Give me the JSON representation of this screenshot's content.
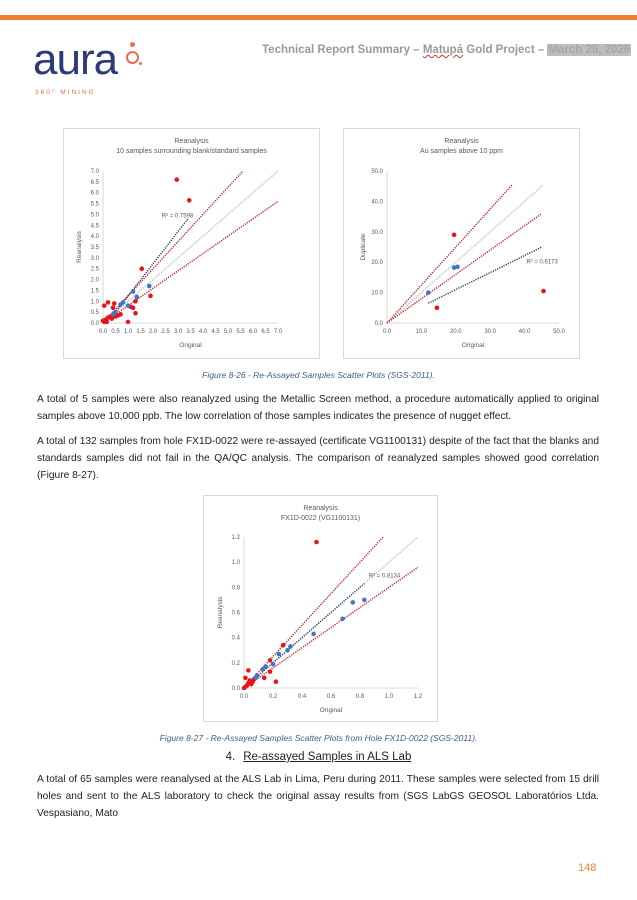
{
  "header": {
    "logo_word": "aura",
    "logo_tagline": "360° MINING",
    "title_prefix": "Technical Report Summary – ",
    "title_project": "Matupá",
    "title_middle": " Gold Project – ",
    "title_date": "March 25, 2026",
    "accent_color": "#ef7d32"
  },
  "captions": {
    "fig26": "Figure 8-26 - Re-Assayed Samples Scatter Plots (SGS-2011).",
    "fig27": "Figure 8-27 - Re-Assayed Samples Scatter Plots from Hole FX1D-0022 (SGS-2011)."
  },
  "paragraphs": {
    "p1": "A total of 5 samples were also reanalyzed using the Metallic Screen method, a procedure automatically applied to original samples above 10,000 ppb. The low correlation of those samples indicates the presence of nugget effect.",
    "p2": "A total of 132 samples from hole FX1D-0022 were re-assayed (certificate VG1100131) despite of the fact that the blanks and standards samples did not fail in the QA/QC analysis. The comparison of reanalyzed samples showed good correlation (Figure 8-27).",
    "p3": "A total of 65 samples were reanalysed at the ALS Lab in Lima, Peru during 2011. These samples were selected from 15 drill holes and sent to the ALS laboratory to check the original assay results from (SGS LabGS GEOSOL Laboratórios Ltda. Vespasiano, Mato"
  },
  "section": {
    "number": "4.",
    "title": "Re-assayed Samples in ALS Lab"
  },
  "page_number": "148",
  "chart_data": [
    {
      "type": "scatter",
      "title": "Reanalysis",
      "subtitle": "10 samples surrounding blank/standard samples",
      "xlabel": "Original",
      "ylabel": "Reanalysis",
      "xlim": [
        0,
        7
      ],
      "ylim": [
        0,
        7
      ],
      "xticks": [
        "0.0",
        "0.5",
        "1.0",
        "1.5",
        "2.0",
        "2.5",
        "3.0",
        "3.5",
        "4.0",
        "4.5",
        "5.0",
        "5.5",
        "6.0",
        "6.5",
        "7.0"
      ],
      "yticks": [
        "0.0",
        "0.5",
        "1.0",
        "1.5",
        "2.0",
        "2.5",
        "3.0",
        "3.5",
        "4.0",
        "4.5",
        "5.0",
        "5.5",
        "6.0",
        "6.5",
        "7.0"
      ],
      "r2_label": "R² = 0.7598",
      "r2_at": [
        2.35,
        4.85
      ],
      "series": [
        {
          "name": "red",
          "color": "#e8141b",
          "points": [
            [
              2.95,
              6.6
            ],
            [
              3.45,
              5.65
            ],
            [
              1.55,
              2.5
            ],
            [
              1.9,
              1.25
            ],
            [
              1.3,
              1.0
            ],
            [
              1.3,
              0.45
            ],
            [
              1.0,
              0.05
            ],
            [
              0.05,
              0.8
            ],
            [
              0.2,
              0.95
            ],
            [
              0.45,
              0.9
            ],
            [
              0.4,
              0.7
            ],
            [
              1.1,
              0.75
            ],
            [
              1.2,
              0.7
            ],
            [
              0.6,
              0.35
            ],
            [
              0.5,
              0.3
            ],
            [
              0.7,
              0.4
            ],
            [
              0.35,
              0.2
            ],
            [
              0.2,
              0.25
            ],
            [
              0.1,
              0.15
            ],
            [
              0.05,
              0.05
            ],
            [
              0.0,
              0.1
            ],
            [
              0.15,
              0.05
            ],
            [
              0.3,
              0.3
            ]
          ]
        },
        {
          "name": "blue",
          "color": "#4472c4",
          "points": [
            [
              1.85,
              1.7
            ],
            [
              1.2,
              1.45
            ],
            [
              1.35,
              1.2
            ],
            [
              0.8,
              0.95
            ],
            [
              0.7,
              0.85
            ],
            [
              1.0,
              0.8
            ],
            [
              0.5,
              0.5
            ],
            [
              0.4,
              0.4
            ]
          ]
        }
      ],
      "lines": [
        {
          "name": "trend",
          "color": "#2f3f6e",
          "from": [
            0.3,
            0.2
          ],
          "to": [
            3.4,
            4.8
          ]
        },
        {
          "name": "upper-limit",
          "color": "#c0272d",
          "from": [
            0,
            0
          ],
          "to": [
            5.6,
            7.0
          ]
        },
        {
          "name": "lower-limit",
          "color": "#c0272d",
          "from": [
            0,
            0
          ],
          "to": [
            7.0,
            5.6
          ]
        },
        {
          "name": "one-to-one",
          "color": "#bfbfbf",
          "from": [
            0,
            0
          ],
          "to": [
            7.0,
            7.0
          ]
        }
      ]
    },
    {
      "type": "scatter",
      "title": "Reanalysis",
      "subtitle": "Au samples above 10 ppm",
      "xlabel": "Original",
      "ylabel": "Duplicate",
      "xlim": [
        0,
        50
      ],
      "ylim": [
        0,
        50
      ],
      "xticks": [
        "0.0",
        "10.0",
        "20.0",
        "30.0",
        "40.0",
        "50.0"
      ],
      "yticks": [
        "0.0",
        "10.0",
        "20.0",
        "30.0",
        "40.0",
        "50.0"
      ],
      "r2_label": "R² = 0.6173",
      "r2_at": [
        40.5,
        19.5
      ],
      "series": [
        {
          "name": "red",
          "color": "#e8141b",
          "points": [
            [
              19.5,
              29
            ],
            [
              14.5,
              5
            ],
            [
              45.5,
              10.5
            ]
          ]
        },
        {
          "name": "blue",
          "color": "#4472c4",
          "points": [
            [
              19.5,
              18.2
            ],
            [
              20.5,
              18.5
            ],
            [
              12,
              10
            ]
          ]
        }
      ],
      "lines": [
        {
          "name": "trend",
          "color": "#2f3f6e",
          "from": [
            12,
            6.5
          ],
          "to": [
            45,
            25
          ]
        },
        {
          "name": "upper-limit",
          "color": "#c0272d",
          "from": [
            0,
            0
          ],
          "to": [
            36.5,
            45.6
          ]
        },
        {
          "name": "lower-limit",
          "color": "#c0272d",
          "from": [
            0,
            0
          ],
          "to": [
            45,
            36
          ]
        },
        {
          "name": "one-to-one",
          "color": "#bfbfbf",
          "from": [
            0,
            0
          ],
          "to": [
            45.5,
            45.5
          ]
        }
      ]
    },
    {
      "type": "scatter",
      "title": "Reanalysis",
      "subtitle": "FX1D-0022  (VG1100131)",
      "xlabel": "Original",
      "ylabel": "Reanalysis",
      "xlim": [
        0,
        1.2
      ],
      "ylim": [
        0,
        1.2
      ],
      "xticks": [
        "0.0",
        "0.2",
        "0.4",
        "0.6",
        "0.8",
        "1.0",
        "1.2"
      ],
      "yticks": [
        "0.0",
        "0.2",
        "0.4",
        "0.6",
        "0.8",
        "1.0",
        "1.2"
      ],
      "r2_label": "R² = 0.8134",
      "r2_at": [
        0.86,
        0.88
      ],
      "series": [
        {
          "name": "red",
          "color": "#e8141b",
          "points": [
            [
              0.5,
              1.16
            ],
            [
              0.27,
              0.34
            ],
            [
              0.18,
              0.22
            ],
            [
              0.18,
              0.13
            ],
            [
              0.14,
              0.08
            ],
            [
              0.22,
              0.05
            ],
            [
              0.03,
              0.14
            ],
            [
              0.01,
              0.08
            ],
            [
              0.04,
              0.06
            ],
            [
              0.06,
              0.05
            ],
            [
              0.02,
              0.02
            ],
            [
              0.0,
              0.0
            ],
            [
              0.05,
              0.03
            ],
            [
              0.07,
              0.07
            ],
            [
              0.03,
              0.04
            ],
            [
              0.01,
              0.01
            ]
          ]
        },
        {
          "name": "blue",
          "color": "#4472c4",
          "points": [
            [
              0.83,
              0.7
            ],
            [
              0.75,
              0.68
            ],
            [
              0.68,
              0.55
            ],
            [
              0.48,
              0.43
            ],
            [
              0.32,
              0.33
            ],
            [
              0.3,
              0.3
            ],
            [
              0.24,
              0.27
            ],
            [
              0.2,
              0.19
            ],
            [
              0.15,
              0.17
            ],
            [
              0.13,
              0.15
            ],
            [
              0.09,
              0.1
            ],
            [
              0.08,
              0.08
            ]
          ]
        }
      ],
      "lines": [
        {
          "name": "trend",
          "color": "#2f3f6e",
          "from": [
            0,
            0
          ],
          "to": [
            0.83,
            0.83
          ]
        },
        {
          "name": "upper-limit",
          "color": "#c0272d",
          "from": [
            0,
            0
          ],
          "to": [
            0.96,
            1.2
          ]
        },
        {
          "name": "lower-limit",
          "color": "#c0272d",
          "from": [
            0,
            0
          ],
          "to": [
            1.2,
            0.96
          ]
        },
        {
          "name": "one-to-one",
          "color": "#bfbfbf",
          "from": [
            0,
            0
          ],
          "to": [
            1.2,
            1.2
          ]
        }
      ]
    }
  ]
}
